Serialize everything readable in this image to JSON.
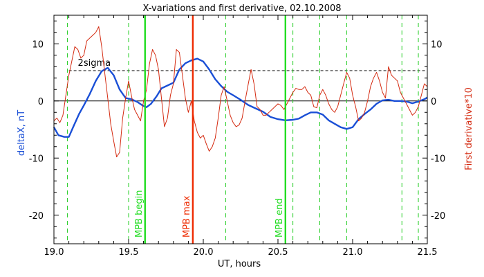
{
  "chart_data": {
    "type": "line",
    "title": "X-variations and first derivative, 02.10.2008",
    "xlabel": "UT, hours",
    "ylabel_left": "deltaX, nT",
    "ylabel_right": "First derivative*10",
    "xlim": [
      19.0,
      21.5
    ],
    "ylim": [
      -25,
      15
    ],
    "xticks": [
      "19.0",
      "19.5",
      "20.0",
      "20.5",
      "21.0",
      "21.5"
    ],
    "yticks": [
      "-20",
      "-10",
      "0",
      "10"
    ],
    "colors": {
      "deltaX": "#1a4fd6",
      "derivative": "#d42a10",
      "mpb_boundary": "#22dd22",
      "mpb_max": "#ee2a00",
      "green_dashed": "#22cc22",
      "reference": "#000000"
    },
    "twosigma_label": "2sigma",
    "twosigma_value": 5.3,
    "dashed_lines_x": [
      19.09,
      19.5,
      20.15,
      20.6,
      20.78,
      20.96,
      21.33,
      21.44
    ],
    "markers": [
      {
        "x": 19.61,
        "label": "MPB begin",
        "color": "#22dd22"
      },
      {
        "x": 19.93,
        "label": "MPB max",
        "color": "#ee2a00"
      },
      {
        "x": 20.55,
        "label": "MPB end",
        "color": "#22dd22"
      }
    ],
    "series": [
      {
        "key": "deltaX",
        "x": [
          19.0,
          19.03,
          19.07,
          19.1,
          19.13,
          19.17,
          19.2,
          19.24,
          19.28,
          19.32,
          19.36,
          19.4,
          19.44,
          19.48,
          19.52,
          19.56,
          19.6,
          19.62,
          19.65,
          19.69,
          19.72,
          19.76,
          19.8,
          19.84,
          19.88,
          19.92,
          19.96,
          20.0,
          20.04,
          20.08,
          20.12,
          20.16,
          20.2,
          20.25,
          20.3,
          20.35,
          20.4,
          20.45,
          20.5,
          20.55,
          20.6,
          20.64,
          20.68,
          20.72,
          20.76,
          20.8,
          20.84,
          20.88,
          20.92,
          20.96,
          21.0,
          21.04,
          21.08,
          21.12,
          21.16,
          21.2,
          21.24,
          21.28,
          21.32,
          21.36,
          21.4,
          21.44,
          21.48,
          21.5
        ],
        "y": [
          -4.6,
          -6.0,
          -6.3,
          -6.3,
          -4.5,
          -2.2,
          -0.8,
          1.2,
          3.5,
          5.2,
          5.8,
          4.5,
          2.0,
          0.5,
          0.3,
          -0.2,
          -0.9,
          -1.1,
          -0.5,
          0.9,
          2.2,
          2.7,
          3.2,
          5.5,
          6.6,
          7.1,
          7.4,
          6.9,
          5.5,
          3.8,
          2.6,
          1.6,
          1.0,
          0.2,
          -0.7,
          -1.3,
          -1.9,
          -2.8,
          -3.2,
          -3.4,
          -3.3,
          -3.1,
          -2.5,
          -2.0,
          -2.0,
          -2.4,
          -3.4,
          -4.0,
          -4.6,
          -4.9,
          -4.6,
          -3.2,
          -2.3,
          -1.5,
          -0.5,
          0.1,
          0.2,
          0.0,
          0.0,
          -0.1,
          -0.4,
          -0.1,
          0.3,
          0.6
        ]
      },
      {
        "key": "derivative",
        "x": [
          19.0,
          19.02,
          19.04,
          19.06,
          19.08,
          19.1,
          19.12,
          19.14,
          19.16,
          19.18,
          19.2,
          19.22,
          19.24,
          19.26,
          19.28,
          19.3,
          19.32,
          19.34,
          19.36,
          19.38,
          19.4,
          19.42,
          19.44,
          19.46,
          19.48,
          19.5,
          19.52,
          19.54,
          19.56,
          19.58,
          19.6,
          19.62,
          19.64,
          19.66,
          19.68,
          19.7,
          19.72,
          19.74,
          19.76,
          19.78,
          19.8,
          19.82,
          19.84,
          19.86,
          19.88,
          19.9,
          19.92,
          19.94,
          19.96,
          19.98,
          20.0,
          20.02,
          20.04,
          20.06,
          20.08,
          20.1,
          20.12,
          20.14,
          20.16,
          20.18,
          20.2,
          20.22,
          20.24,
          20.26,
          20.28,
          20.3,
          20.32,
          20.34,
          20.36,
          20.38,
          20.4,
          20.42,
          20.44,
          20.46,
          20.48,
          20.5,
          20.52,
          20.54,
          20.56,
          20.58,
          20.6,
          20.62,
          20.64,
          20.66,
          20.68,
          20.7,
          20.72,
          20.74,
          20.76,
          20.78,
          20.8,
          20.82,
          20.84,
          20.86,
          20.88,
          20.9,
          20.92,
          20.94,
          20.96,
          20.98,
          21.0,
          21.02,
          21.04,
          21.06,
          21.08,
          21.1,
          21.12,
          21.14,
          21.16,
          21.18,
          21.2,
          21.22,
          21.24,
          21.26,
          21.28,
          21.3,
          21.32,
          21.34,
          21.36,
          21.38,
          21.4,
          21.42,
          21.44,
          21.46,
          21.48,
          21.5
        ],
        "y": [
          -3.5,
          -3.0,
          -3.8,
          -2.5,
          1.0,
          4.5,
          7.0,
          9.5,
          9.0,
          7.5,
          8.0,
          10.5,
          11.0,
          11.5,
          12.0,
          13.0,
          9.5,
          5.0,
          0.5,
          -4.0,
          -7.0,
          -9.8,
          -9.0,
          -3.0,
          0.5,
          3.5,
          0.8,
          -1.5,
          -2.5,
          -3.5,
          0.0,
          2.0,
          6.5,
          9.0,
          8.0,
          5.5,
          0.5,
          -4.5,
          -3.0,
          1.0,
          3.0,
          9.0,
          8.5,
          4.5,
          0.5,
          -2.0,
          0.0,
          -3.5,
          -5.5,
          -6.5,
          -6.0,
          -7.5,
          -8.8,
          -8.0,
          -6.5,
          -3.0,
          1.0,
          2.5,
          0.0,
          -2.5,
          -3.8,
          -4.5,
          -4.2,
          -3.0,
          0.0,
          2.8,
          5.5,
          3.0,
          -1.0,
          -1.5,
          -2.5,
          -2.5,
          -2.0,
          -1.5,
          -1.0,
          -0.5,
          -0.8,
          -1.5,
          -0.5,
          0.5,
          1.5,
          2.2,
          2.0,
          2.0,
          2.5,
          1.5,
          1.0,
          -1.0,
          -1.2,
          1.0,
          2.0,
          1.0,
          -0.5,
          -1.5,
          -2.0,
          -1.0,
          1.0,
          3.0,
          5.0,
          4.0,
          1.0,
          -1.0,
          -3.5,
          -3.0,
          -2.0,
          0.0,
          2.5,
          4.0,
          5.0,
          3.5,
          1.5,
          0.5,
          6.0,
          4.5,
          4.0,
          3.5,
          1.5,
          0.5,
          -0.5,
          -1.5,
          -2.5,
          -2.0,
          -1.0,
          1.0,
          3.0,
          2.5
        ]
      }
    ]
  }
}
